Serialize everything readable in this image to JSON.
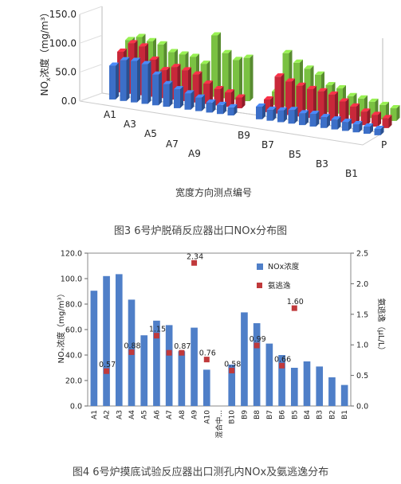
{
  "figure3": {
    "caption": "图3 6号炉脱硝反应器出口NOx分布图",
    "chart_data": {
      "type": "bar",
      "ylabel_main": "NO",
      "ylabel_sub": "x",
      "ylabel_rest": "浓度（mg/m³）",
      "xlabel": "宽度方向测点编号",
      "p_label": "P",
      "y_ticks": [
        "0.0",
        "50.0",
        "100.0",
        "150.0"
      ],
      "ylim": [
        0,
        150
      ],
      "left_labels": [
        "A1",
        "A3",
        "A5",
        "A7",
        "A9"
      ],
      "right_labels": [
        "B9",
        "B7",
        "B5",
        "B3",
        "B1"
      ],
      "series_colors": [
        "#3c6fc8",
        "#c8283a",
        "#7ac142"
      ],
      "left_values": [
        [
          75,
          90,
          92,
          88,
          68,
          50,
          42,
          36,
          30,
          22,
          20,
          18
        ],
        [
          90,
          112,
          108,
          82,
          62,
          72,
          68,
          62,
          45,
          36,
          32,
          24
        ],
        [
          100,
          110,
          104,
          100,
          86,
          84,
          82,
          70,
          136,
          100,
          88,
          96
        ]
      ],
      "right_values": [
        [
          28,
          24,
          26,
          30,
          26,
          28,
          24,
          22,
          20,
          18,
          16,
          14
        ],
        [
          28,
          82,
          74,
          68,
          64,
          62,
          58,
          46,
          38,
          30,
          26,
          22
        ],
        [
          30,
          118,
          100,
          90,
          80,
          60,
          56,
          42,
          40,
          36,
          32,
          28
        ]
      ]
    }
  },
  "figure4": {
    "caption": "图4 6号炉摸底试验反应器出口测孔内NOx及氨逃逸分布",
    "chart_data": {
      "type": "bar",
      "categories": [
        "A1",
        "A2",
        "A3",
        "A4",
        "A5",
        "A6",
        "A7",
        "A8",
        "A9",
        "A10",
        "混合中...",
        "B10",
        "B9",
        "B8",
        "B7",
        "B6",
        "B5",
        "B4",
        "B3",
        "B2",
        "B1"
      ],
      "ylabel_left": "NOₓ浓度（mg/m³）",
      "ylabel_right": "氨逃逸（μL/L）",
      "left_ticks": [
        "0.0",
        "20.0",
        "40.0",
        "60.0",
        "80.0",
        "100.0",
        "120.0"
      ],
      "right_ticks": [
        "0.0",
        "0.5",
        "1.0",
        "1.5",
        "2.0",
        "2.5"
      ],
      "ylim_left": [
        0,
        120
      ],
      "ylim_right": [
        0,
        2.5
      ],
      "series": [
        {
          "name": "NOx浓度",
          "kind": "bar",
          "color": "#4f7fc8",
          "values": [
            90.5,
            102,
            103.5,
            83.5,
            55.5,
            67,
            63.5,
            43,
            61.5,
            28.5,
            0,
            32.5,
            73.5,
            65,
            49,
            40,
            30,
            35,
            31,
            22.5,
            16.5
          ]
        },
        {
          "name": "氨逃逸",
          "kind": "marker",
          "color": "#c0393b",
          "points": [
            {
              "category": "A2",
              "value": 0.57,
              "label": "0.57"
            },
            {
              "category": "A4",
              "value": 0.88,
              "label": "0.88"
            },
            {
              "category": "A6",
              "value": 1.15,
              "label": "1.15"
            },
            {
              "category": "A7",
              "value": 0.87,
              "label": ""
            },
            {
              "category": "A9",
              "value": 2.34,
              "label": "2.34"
            },
            {
              "category": "A8",
              "value": 0.87,
              "label": "0.87"
            },
            {
              "category": "A10",
              "value": 0.76,
              "label": "0.76"
            },
            {
              "category": "B10",
              "value": 0.58,
              "label": "0.58"
            },
            {
              "category": "B8",
              "value": 0.99,
              "label": "0.99"
            },
            {
              "category": "B6",
              "value": 0.66,
              "label": "0.66"
            },
            {
              "category": "B5",
              "value": 1.6,
              "label": "1.60"
            }
          ]
        }
      ]
    }
  }
}
